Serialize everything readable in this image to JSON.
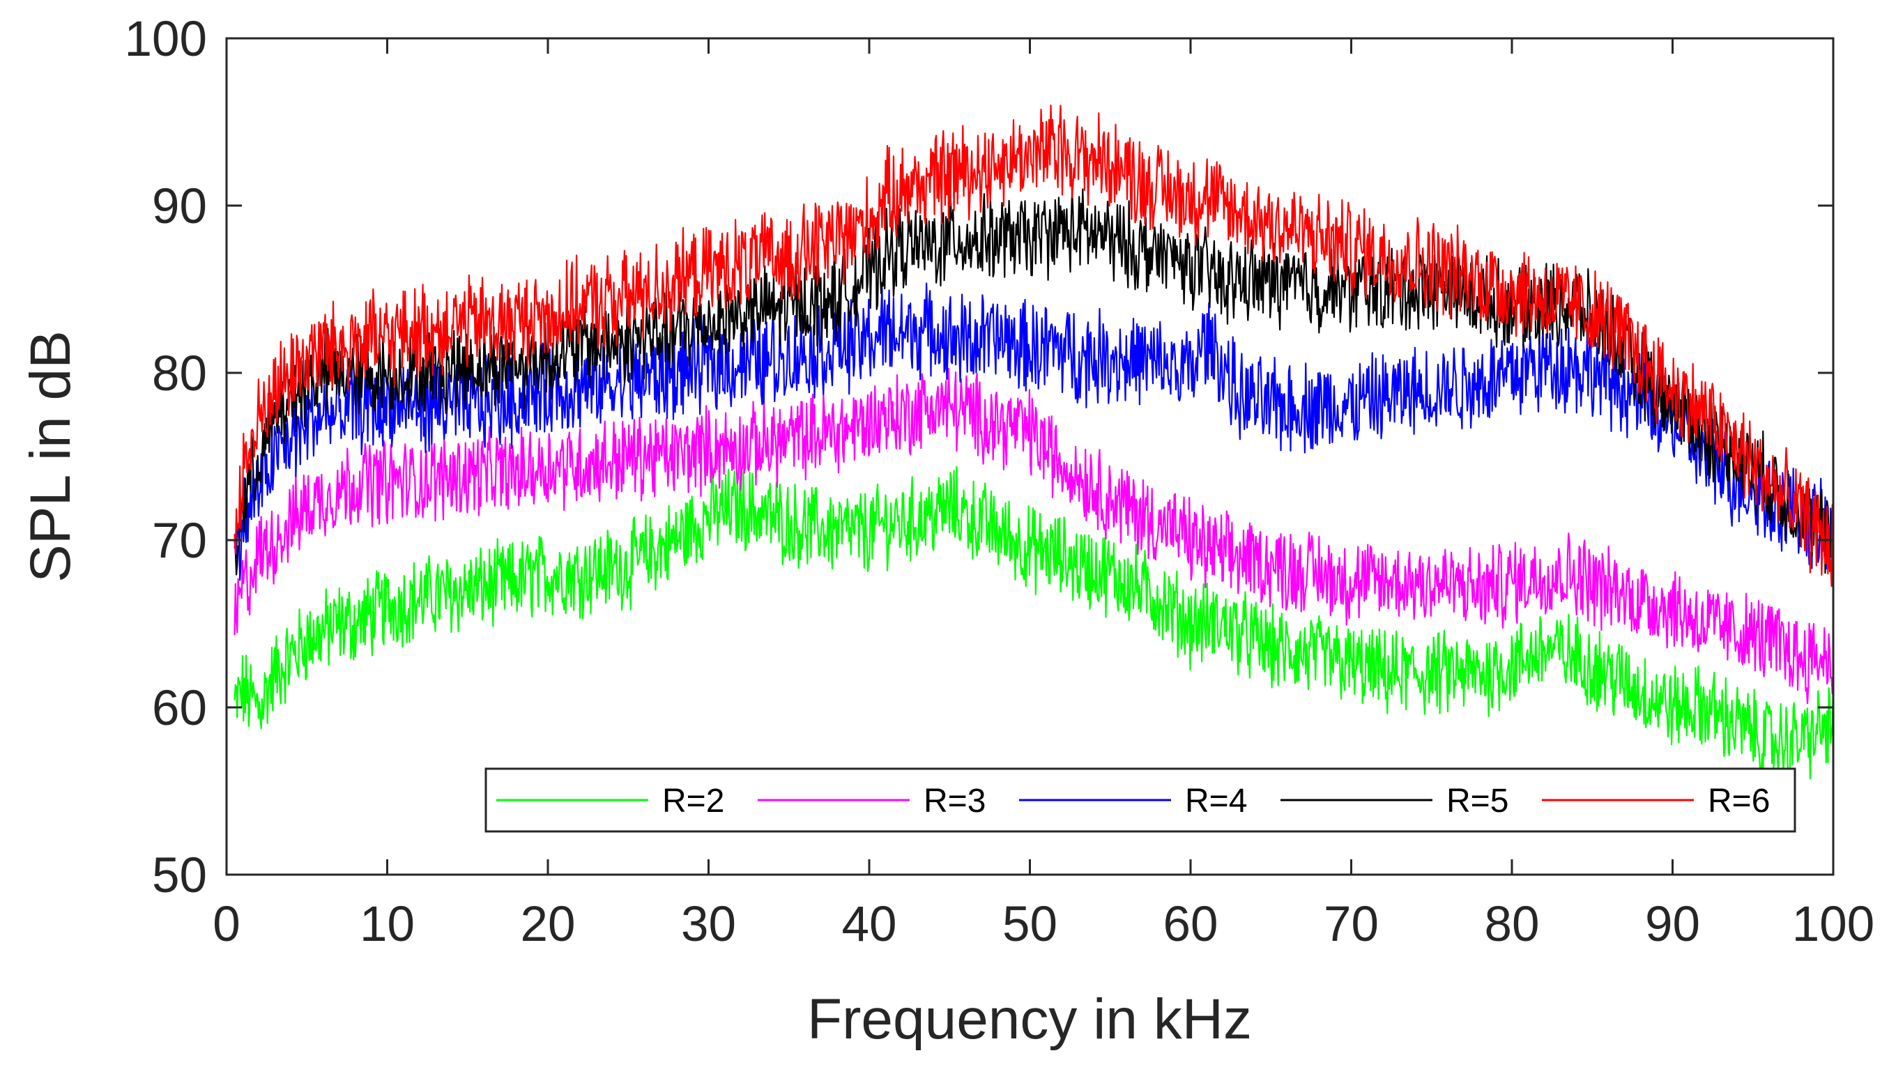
{
  "chart_data": {
    "type": "line",
    "title": "",
    "xlabel": "Frequency in kHz",
    "ylabel": "SPL in dB",
    "xlim": [
      0,
      100
    ],
    "ylim": [
      50,
      100
    ],
    "xticks": [
      0,
      10,
      20,
      30,
      40,
      50,
      60,
      70,
      80,
      90,
      100
    ],
    "yticks": [
      50,
      60,
      70,
      80,
      90,
      100
    ],
    "xtick_labels": [
      "0",
      "10",
      "20",
      "30",
      "40",
      "50",
      "60",
      "70",
      "80",
      "90",
      "100"
    ],
    "ytick_labels": [
      "50",
      "60",
      "70",
      "80",
      "90",
      "100"
    ],
    "grid": false,
    "legend_position": "bottom-right, single row",
    "x": [
      0.5,
      1,
      2,
      3,
      4,
      5,
      6,
      7,
      8,
      10,
      12,
      15,
      18,
      20,
      22,
      25,
      28,
      30,
      32,
      35,
      38,
      40,
      41,
      42,
      44,
      45,
      48,
      50,
      52,
      53,
      55,
      58,
      60,
      61,
      62,
      63,
      65,
      68,
      70,
      72,
      75,
      78,
      80,
      82,
      84,
      86,
      88,
      90,
      92,
      94,
      96,
      98,
      100
    ],
    "series": [
      {
        "name": "R=2",
        "color": "#00ff00",
        "values": [
          60,
          61,
          60,
          62,
          63,
          64,
          64.5,
          65,
          65,
          66,
          66.5,
          67,
          67.5,
          68,
          68,
          68.5,
          70,
          71.5,
          72,
          71,
          70.5,
          70.5,
          71,
          71,
          71.5,
          72,
          70.5,
          69.5,
          69,
          68.5,
          68,
          66.5,
          65,
          65,
          65,
          64.5,
          63.5,
          63,
          62.5,
          62,
          62,
          62,
          62.5,
          63.5,
          63,
          62,
          61,
          60,
          60,
          59,
          58,
          58,
          59
        ]
      },
      {
        "name": "R=3",
        "color": "#ff00ff",
        "values": [
          65,
          67,
          69,
          70,
          71,
          72,
          72.5,
          73,
          73.5,
          73.5,
          73.5,
          74,
          74,
          74.5,
          74.5,
          75,
          75,
          75.5,
          75.5,
          76,
          76.5,
          77,
          77.5,
          77.5,
          78,
          78,
          77,
          76.5,
          74.5,
          74,
          72.5,
          71,
          70,
          69.5,
          69,
          69,
          68.5,
          68,
          67.5,
          67.5,
          67.5,
          67,
          67.5,
          68,
          68,
          67,
          66.5,
          66,
          65,
          64.5,
          64,
          63,
          63
        ]
      },
      {
        "name": "R=4",
        "color": "#0000ff",
        "values": [
          68,
          71,
          73,
          75,
          76,
          77,
          77.5,
          77.5,
          78,
          78,
          78,
          78,
          78.5,
          79,
          79,
          79.5,
          80,
          80.5,
          80.5,
          81,
          81.5,
          82,
          82.5,
          82.5,
          82.5,
          82,
          82,
          81.5,
          81.5,
          81,
          81,
          80.5,
          80,
          82,
          80.5,
          78.5,
          78,
          78,
          78,
          78.5,
          79,
          79.5,
          80,
          80.5,
          80.5,
          79.5,
          78.5,
          77,
          75,
          73.5,
          72.5,
          71.5,
          70
        ]
      },
      {
        "name": "R=5",
        "color": "#000000",
        "values": [
          68,
          72,
          75,
          77,
          78.5,
          79.5,
          80,
          80,
          80,
          80,
          80,
          80.5,
          80.5,
          81,
          81.5,
          82,
          82.5,
          83,
          83.5,
          84,
          84.5,
          86,
          87,
          87.5,
          87.5,
          88,
          88,
          88,
          88.5,
          88.5,
          88,
          87,
          86.5,
          86,
          85.5,
          85.5,
          85.5,
          85,
          85,
          85,
          85,
          84.5,
          84,
          84,
          84,
          82.5,
          80,
          78,
          76.5,
          75,
          73.5,
          71.5,
          70
        ]
      },
      {
        "name": "R=6",
        "color": "#ff0000",
        "values": [
          70,
          74,
          77,
          79,
          80,
          81,
          81.5,
          81.5,
          82,
          82,
          82.5,
          83,
          83,
          83.5,
          84,
          84.5,
          85.5,
          86,
          86.5,
          87,
          88,
          89,
          90.5,
          91,
          91.5,
          92,
          92.5,
          93,
          93.5,
          93,
          92.5,
          91,
          90.5,
          90.5,
          90,
          89.5,
          89,
          88,
          87.5,
          87,
          86.5,
          85.5,
          85,
          84.5,
          84,
          83,
          81,
          79,
          77.5,
          75.5,
          73.5,
          71.5,
          69.5
        ]
      }
    ]
  }
}
